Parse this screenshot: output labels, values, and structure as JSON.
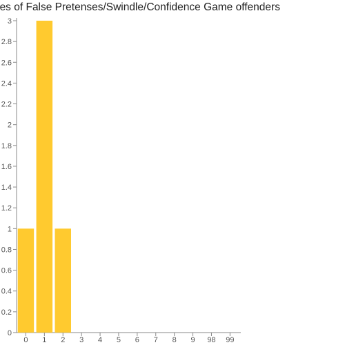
{
  "chart_data": {
    "type": "bar",
    "title": "Races of False Pretenses/Swindle/Confidence Game offenders",
    "categories": [
      "0",
      "1",
      "2",
      "3",
      "4",
      "5",
      "6",
      "7",
      "8",
      "9",
      "98",
      "99"
    ],
    "series": [
      {
        "values": [
          1,
          3,
          1,
          0,
          0,
          0,
          0,
          0,
          0,
          0,
          0,
          0
        ]
      }
    ],
    "xlabel": "",
    "ylabel": "",
    "ylim": [
      0,
      3
    ],
    "yticks": [
      "0",
      "0.2",
      "0.4",
      "0.6",
      "0.8",
      "1",
      "1.2",
      "1.4",
      "1.6",
      "1.8",
      "2",
      "2.2",
      "2.4",
      "2.6",
      "2.8",
      "3"
    ],
    "grid": false,
    "legend": "none",
    "bar_color": "#ffca2f",
    "axis_color": "#888888"
  }
}
